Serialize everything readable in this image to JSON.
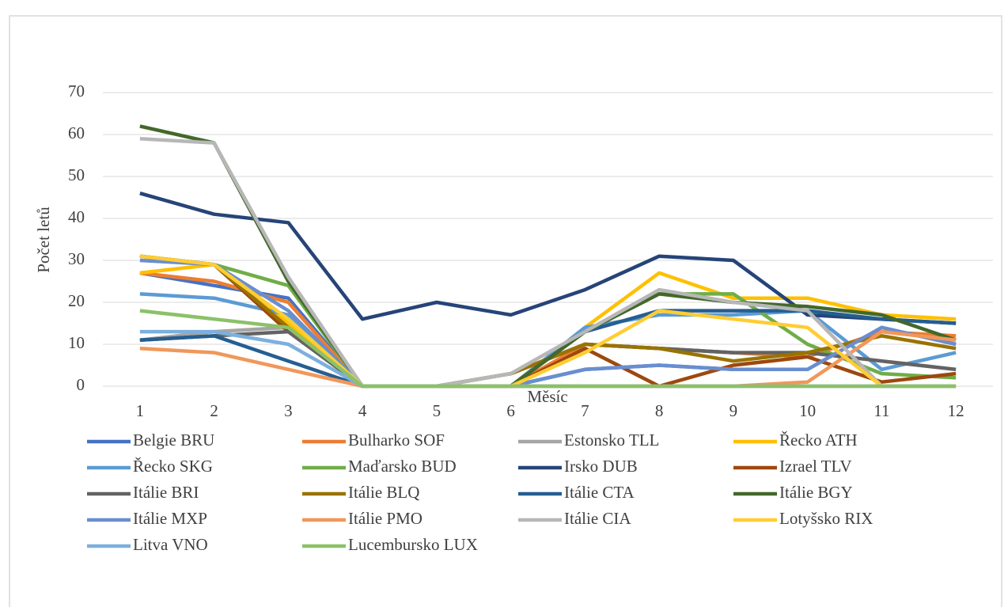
{
  "chart_data": {
    "type": "line",
    "x_label": "Měsíc",
    "y_label": "Počet letů",
    "categories": [
      "1",
      "2",
      "3",
      "4",
      "5",
      "6",
      "7",
      "8",
      "9",
      "10",
      "11",
      "12"
    ],
    "ylim": [
      0,
      70
    ],
    "yticks": [
      0,
      10,
      20,
      30,
      40,
      50,
      60,
      70
    ],
    "series": [
      {
        "name": "Belgie BRU",
        "color": "#4472c4",
        "values": [
          27,
          24,
          21,
          0,
          0,
          0,
          4,
          5,
          4,
          4,
          14,
          10
        ]
      },
      {
        "name": "Bulharko SOF",
        "color": "#ed7d31",
        "values": [
          27,
          25,
          20,
          0,
          0,
          0,
          10,
          9,
          8,
          7,
          13,
          12
        ]
      },
      {
        "name": "Estonsko TLL",
        "color": "#a5a5a5",
        "values": [
          11,
          13,
          14,
          0,
          0,
          3,
          10,
          9,
          8,
          8,
          6,
          4
        ]
      },
      {
        "name": "Řecko ATH",
        "color": "#ffc000",
        "values": [
          27,
          29,
          15,
          0,
          0,
          0,
          14,
          27,
          21,
          21,
          17,
          16
        ]
      },
      {
        "name": "Řecko SKG",
        "color": "#5b9bd5",
        "values": [
          22,
          21,
          17,
          0,
          0,
          0,
          14,
          17,
          17,
          18,
          4,
          8
        ]
      },
      {
        "name": "Maďarsko BUD",
        "color": "#70ad47",
        "values": [
          31,
          29,
          24,
          0,
          0,
          0,
          13,
          22,
          22,
          10,
          3,
          2
        ]
      },
      {
        "name": "Irsko DUB",
        "color": "#264478",
        "values": [
          46,
          41,
          39,
          16,
          20,
          17,
          23,
          31,
          30,
          17,
          16,
          15
        ]
      },
      {
        "name": "Izrael TLV",
        "color": "#9e480e",
        "values": [
          31,
          29,
          13,
          0,
          0,
          0,
          9,
          0,
          5,
          7,
          1,
          3
        ]
      },
      {
        "name": "Itálie  BRI",
        "color": "#636363",
        "values": [
          11,
          12,
          13,
          0,
          0,
          3,
          10,
          9,
          8,
          8,
          6,
          4
        ]
      },
      {
        "name": "Itálie BLQ",
        "color": "#997300",
        "values": [
          31,
          29,
          14,
          0,
          0,
          3,
          10,
          9,
          6,
          8,
          12,
          9
        ]
      },
      {
        "name": "Itálie CTA",
        "color": "#255e91",
        "values": [
          11,
          12,
          6,
          0,
          0,
          0,
          13,
          18,
          18,
          18,
          16,
          15
        ]
      },
      {
        "name": "Itálie BGY",
        "color": "#43682b",
        "values": [
          62,
          58,
          25,
          0,
          0,
          0,
          13,
          22,
          20,
          19,
          17,
          11
        ]
      },
      {
        "name": "Itálie MXP",
        "color": "#698ed0",
        "values": [
          30,
          29,
          18,
          0,
          0,
          0,
          4,
          5,
          4,
          4,
          14,
          10
        ]
      },
      {
        "name": "Itálie PMO",
        "color": "#f1975a",
        "values": [
          9,
          8,
          4,
          0,
          0,
          0,
          0,
          0,
          0,
          1,
          13,
          11
        ]
      },
      {
        "name": "Itálie CIA",
        "color": "#b7b7b7",
        "values": [
          59,
          58,
          26,
          0,
          0,
          3,
          13,
          23,
          20,
          18,
          0,
          0
        ]
      },
      {
        "name": "Lotyšsko RIX",
        "color": "#ffcd33",
        "values": [
          31,
          29,
          16,
          0,
          0,
          0,
          8,
          18,
          16,
          14,
          0,
          0
        ]
      },
      {
        "name": "Litva VNO",
        "color": "#7cafdd",
        "values": [
          13,
          13,
          10,
          0,
          0,
          0,
          0,
          0,
          0,
          0,
          0,
          0
        ]
      },
      {
        "name": "Lucembursko LUX",
        "color": "#8cc168",
        "values": [
          18,
          16,
          14,
          0,
          0,
          0,
          0,
          0,
          0,
          0,
          0,
          0
        ]
      }
    ]
  }
}
